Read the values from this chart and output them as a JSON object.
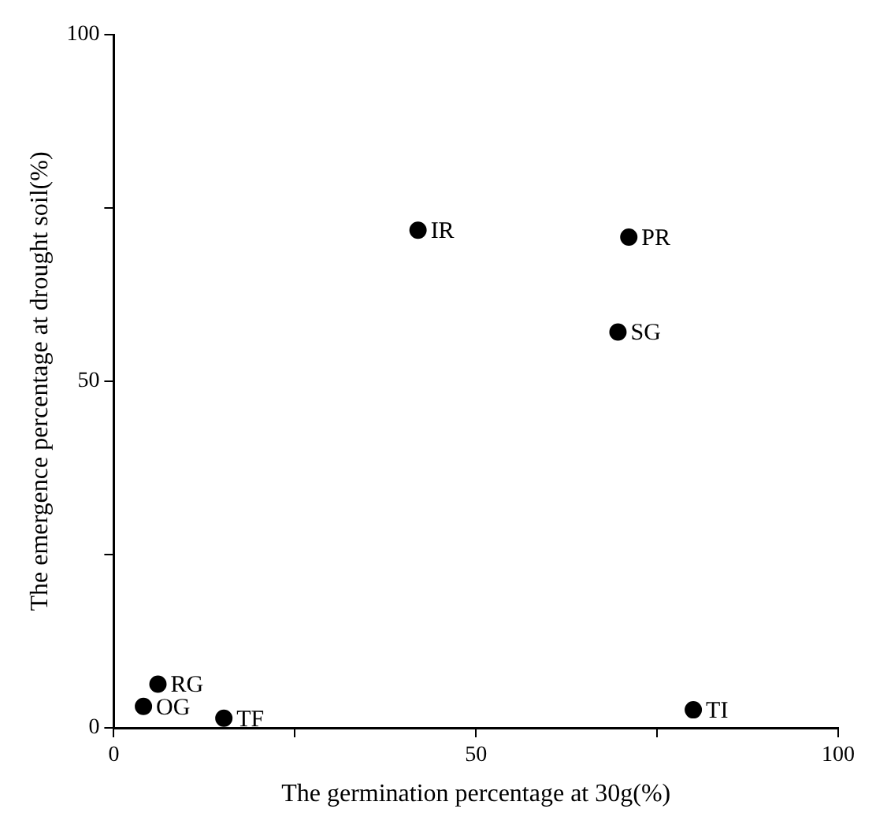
{
  "chart_data": {
    "type": "scatter",
    "xlabel": "The germination percentage at 30g(%)",
    "ylabel": "The emergence percentage at drought soil(%)",
    "x": [
      42,
      71.1,
      69.6,
      80,
      6.1,
      4.1,
      15.2
    ],
    "series": [
      {
        "color": "#000000",
        "values": [
          71.8,
          70.8,
          57.1,
          2.6,
          6.3,
          3.1,
          1.4
        ]
      }
    ],
    "annotations": [
      {
        "text": "IR",
        "x": 42,
        "y": 71.8
      },
      {
        "text": "PR",
        "x": 71.1,
        "y": 70.8
      },
      {
        "text": "SG",
        "x": 69.6,
        "y": 57.1
      },
      {
        "text": "TI",
        "x": 80,
        "y": 2.6
      },
      {
        "text": "RG",
        "x": 6.1,
        "y": 6.3
      },
      {
        "text": "OG",
        "x": 4.1,
        "y": 3.1
      },
      {
        "text": "TF",
        "x": 15.2,
        "y": 1.4
      }
    ],
    "xlim": [
      0,
      100
    ],
    "ylim": [
      0,
      100
    ],
    "xticks": [
      0,
      {
        "value": 25,
        "label": null
      },
      50,
      {
        "value": 75,
        "label": null
      },
      100
    ],
    "yticks": [
      0,
      {
        "value": 25,
        "label": null
      },
      50,
      {
        "value": 75,
        "label": null
      },
      100
    ],
    "marker": "circle",
    "grid": false,
    "legend": false
  }
}
